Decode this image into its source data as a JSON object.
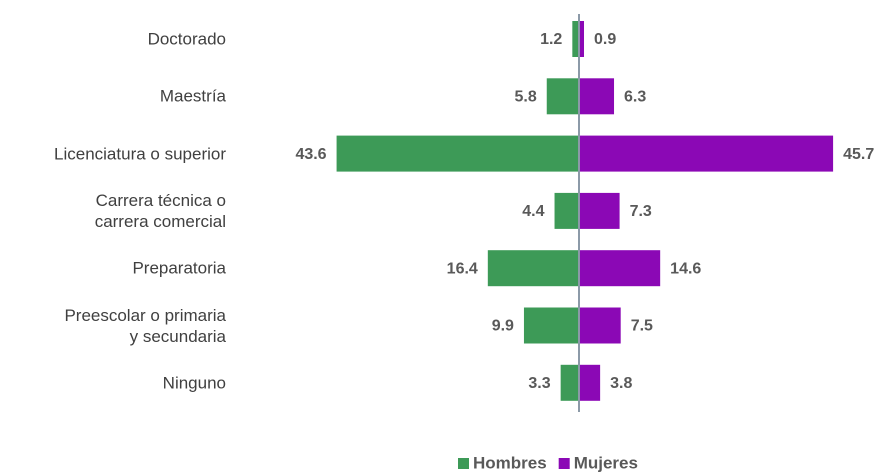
{
  "chart_data": {
    "type": "butterfly",
    "categories": [
      "Doctorado",
      "Maestría",
      "Licenciatura o superior",
      "Carrera técnica o\ncarrera comercial",
      "Preparatoria",
      "Preescolar o primaria\ny secundaria",
      "Ninguno"
    ],
    "series": [
      {
        "name": "Hombres",
        "color": "#3d9a57",
        "values": [
          1.2,
          5.8,
          43.6,
          4.4,
          16.4,
          9.9,
          3.3
        ]
      },
      {
        "name": "Mujeres",
        "color": "#8b08b5",
        "values": [
          0.9,
          6.3,
          45.7,
          7.3,
          14.6,
          7.5,
          3.8
        ]
      }
    ],
    "xlim": [
      0,
      50
    ],
    "legend": "bottom"
  }
}
